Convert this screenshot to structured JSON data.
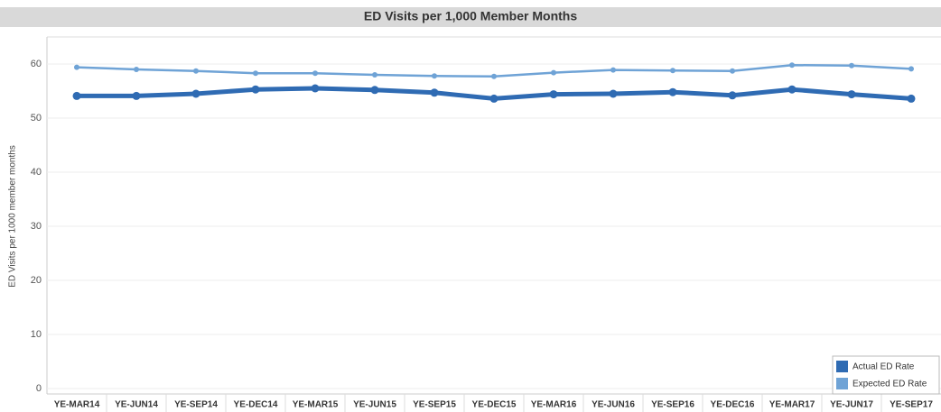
{
  "chart_data": {
    "type": "line",
    "title": "ED Visits per 1,000 Member Months",
    "y_label": "ED Visits per 1000 member months",
    "categories": [
      "YE-MAR14",
      "YE-JUN14",
      "YE-SEP14",
      "YE-DEC14",
      "YE-MAR15",
      "YE-JUN15",
      "YE-SEP15",
      "YE-DEC15",
      "YE-MAR16",
      "YE-JUN16",
      "YE-SEP16",
      "YE-DEC16",
      "YE-MAR17",
      "YE-JUN17",
      "YE-SEP17"
    ],
    "series": [
      {
        "name": "Actual ED Rate",
        "color": "#2f6bb3",
        "values": [
          54.1,
          54.1,
          54.5,
          55.3,
          55.5,
          55.2,
          54.7,
          53.6,
          54.4,
          54.5,
          54.8,
          54.2,
          55.3,
          54.4,
          53.6
        ]
      },
      {
        "name": "Expected ED Rate",
        "color": "#6fa3d6",
        "values": [
          59.4,
          59.0,
          58.7,
          58.3,
          58.3,
          58.0,
          57.8,
          57.7,
          58.4,
          58.9,
          58.8,
          58.7,
          59.8,
          59.7,
          59.1
        ]
      }
    ],
    "ylim": [
      -1,
      65
    ],
    "yticks": [
      0,
      10,
      20,
      30,
      40,
      50,
      60
    ],
    "grid": true,
    "legend": "bottom-right"
  }
}
